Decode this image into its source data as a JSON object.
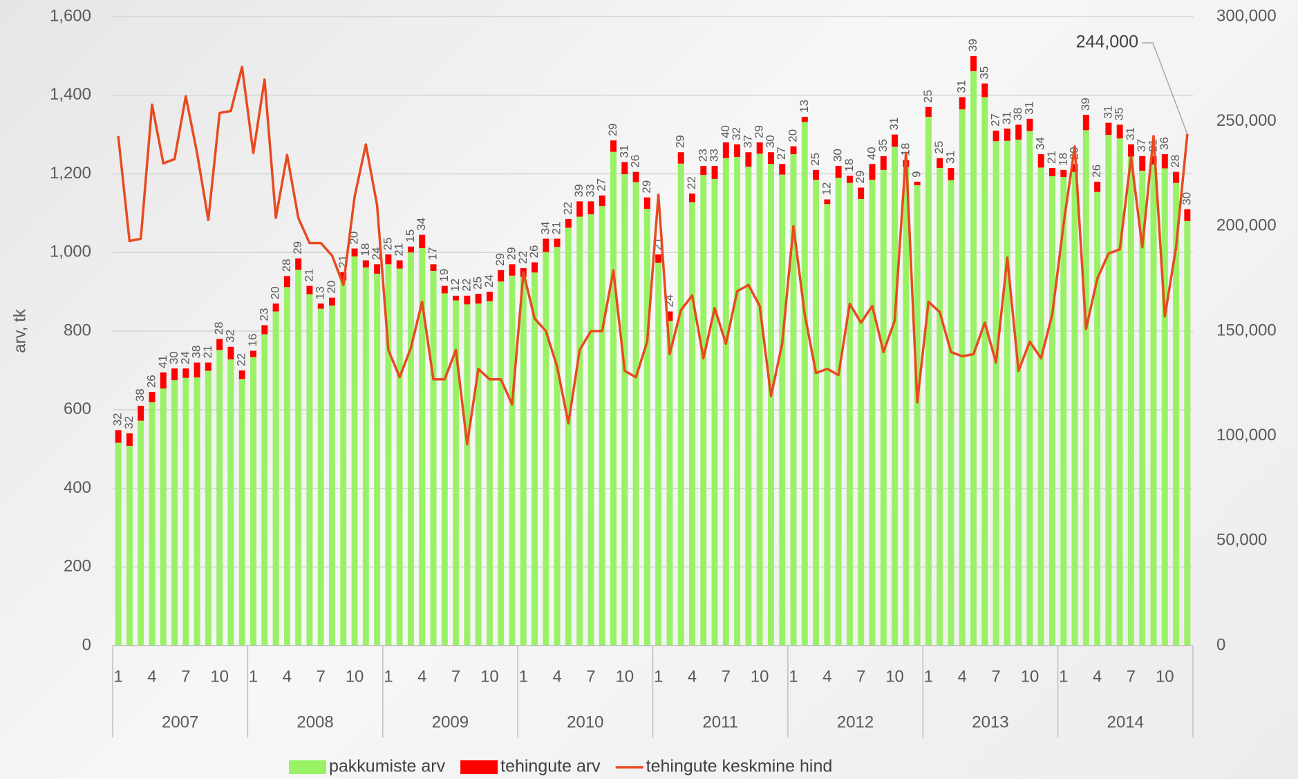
{
  "chart_data": {
    "type": "bar",
    "y_label": "arv, tk",
    "categories": [
      "1",
      null,
      null,
      "4",
      null,
      null,
      "7",
      null,
      null,
      "10",
      null,
      null,
      "1",
      null,
      null,
      "4",
      null,
      null,
      "7",
      null,
      null,
      "10",
      null,
      null,
      "1",
      null,
      null,
      "4",
      null,
      null,
      "7",
      null,
      null,
      "10",
      null,
      null,
      "1",
      null,
      null,
      "4",
      null,
      null,
      "7",
      null,
      null,
      "10",
      null,
      null,
      "1",
      null,
      null,
      "4",
      null,
      null,
      "7",
      null,
      null,
      "10",
      null,
      null,
      "1",
      null,
      null,
      "4",
      null,
      null,
      "7",
      null,
      null,
      "10",
      null,
      null,
      "1",
      null,
      null,
      "4",
      null,
      null,
      "7",
      null,
      null,
      "10",
      null,
      null,
      "1",
      null,
      null,
      "4",
      null,
      null,
      "7",
      null,
      null,
      "10",
      null,
      null
    ],
    "year_labels": [
      "2007",
      "2008",
      "2009",
      "2010",
      "2011",
      "2012",
      "2013",
      "2014"
    ],
    "series": [
      {
        "name": "pakkumiste arv",
        "color": "#99f266",
        "values": [
          516,
          508,
          572,
          619,
          654,
          675,
          681,
          682,
          699,
          752,
          728,
          678,
          734,
          792,
          850,
          912,
          956,
          894,
          857,
          865,
          929,
          990,
          962,
          946,
          970,
          959,
          1000,
          1011,
          953,
          896,
          878,
          868,
          870,
          876,
          926,
          941,
          938,
          949,
          1001,
          1014,
          1063,
          1091,
          1097,
          1118,
          1256,
          1199,
          1179,
          1111,
          974,
          826,
          1226,
          1128,
          1197,
          1187,
          1240,
          1243,
          1218,
          1251,
          1225,
          1198,
          1250,
          1332,
          1185,
          1123,
          1190,
          1177,
          1136,
          1185,
          1210,
          1269,
          1217,
          1171,
          1345,
          1215,
          1184,
          1364,
          1461,
          1395,
          1283,
          1284,
          1287,
          1309,
          1216,
          1194,
          1192,
          1205,
          1311,
          1154,
          1299,
          1290,
          1244,
          1208,
          1224,
          1214,
          1177,
          1080
        ]
      },
      {
        "name": "tehingute arv",
        "color": "#ff0000",
        "values": [
          32,
          32,
          38,
          26,
          41,
          30,
          24,
          38,
          21,
          28,
          32,
          22,
          16,
          23,
          20,
          28,
          29,
          21,
          13,
          20,
          21,
          20,
          18,
          24,
          25,
          21,
          15,
          34,
          17,
          19,
          12,
          22,
          25,
          24,
          29,
          29,
          22,
          26,
          34,
          21,
          22,
          39,
          33,
          27,
          29,
          31,
          26,
          29,
          21,
          24,
          29,
          22,
          23,
          33,
          40,
          32,
          37,
          29,
          30,
          27,
          20,
          13,
          25,
          12,
          30,
          18,
          29,
          40,
          35,
          31,
          18,
          9,
          25,
          25,
          31,
          31,
          39,
          35,
          27,
          31,
          38,
          31,
          34,
          21,
          18,
          20,
          39,
          26,
          31,
          35,
          31,
          37,
          21,
          36,
          28,
          30
        ]
      },
      {
        "name": "tehingute keskmine hind",
        "color": "#e84a1e",
        "axis": "y2",
        "values": [
          243000,
          193000,
          194000,
          258000,
          230000,
          232000,
          262000,
          235000,
          203000,
          254000,
          255000,
          276000,
          235000,
          270000,
          204000,
          234000,
          204000,
          192000,
          192000,
          186000,
          172000,
          214000,
          239000,
          210000,
          141000,
          128000,
          142000,
          164000,
          127000,
          127000,
          141000,
          96000,
          132000,
          127000,
          127000,
          115000,
          178000,
          156000,
          150000,
          133000,
          106000,
          141000,
          150000,
          150000,
          179000,
          131000,
          128000,
          145000,
          215000,
          139000,
          160000,
          167000,
          137000,
          161000,
          144000,
          169000,
          172000,
          162000,
          119000,
          144000,
          200000,
          158000,
          130000,
          132000,
          129000,
          163000,
          154000,
          162000,
          140000,
          155000,
          235000,
          116000,
          164000,
          159000,
          140000,
          138000,
          139000,
          154000,
          135000,
          185000,
          131000,
          145000,
          137000,
          158000,
          201000,
          238000,
          151000,
          175000,
          187000,
          189000,
          233000,
          190000,
          243000,
          157000,
          190000,
          244000
        ]
      }
    ],
    "annotation": "244,000",
    "ylim": [
      0,
      1600
    ],
    "yticks": [
      0,
      200,
      400,
      600,
      800,
      {
        "value": 1000,
        "label": "1,000"
      },
      {
        "value": 1200,
        "label": "1,200"
      },
      {
        "value": 1400,
        "label": "1,400"
      },
      {
        "value": 1600,
        "label": "1,600"
      }
    ],
    "y2lim": [
      0,
      300000
    ],
    "y2ticks": [
      0,
      {
        "value": 50000,
        "label": "50,000"
      },
      {
        "value": 100000,
        "label": "100,000"
      },
      {
        "value": 150000,
        "label": "150,000"
      },
      {
        "value": 200000,
        "label": "200,000"
      },
      {
        "value": 250000,
        "label": "250,000"
      },
      {
        "value": 300000,
        "label": "300,000"
      }
    ],
    "grid": true,
    "legend": "bottom"
  }
}
